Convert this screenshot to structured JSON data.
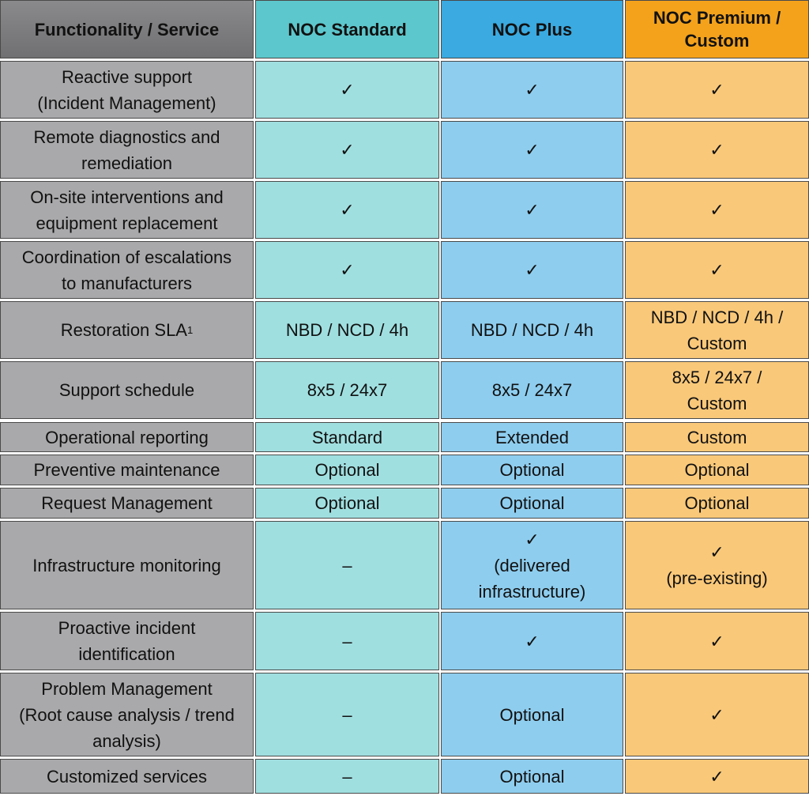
{
  "table": {
    "header": [
      "Functionality / Service",
      "NOC Standard",
      "NOC Plus",
      "NOC Premium /\nCustom"
    ],
    "superscript": "1",
    "rows": [
      [
        "Reactive support\n(Incident Management)",
        "✓",
        "✓",
        "✓"
      ],
      [
        "Remote diagnostics and\nremediation",
        "✓",
        "✓",
        "✓"
      ],
      [
        "On-site interventions and\nequipment replacement",
        "✓",
        "✓",
        "✓"
      ],
      [
        "Coordination of escalations\nto manufacturers",
        "✓",
        "✓",
        "✓"
      ],
      [
        "Restoration SLA",
        "NBD / NCD / 4h",
        "NBD / NCD / 4h",
        "NBD / NCD / 4h /\nCustom"
      ],
      [
        "Support schedule",
        "8x5 / 24x7",
        "8x5 / 24x7",
        "8x5 / 24x7 /\nCustom"
      ],
      [
        "Operational reporting",
        "Standard",
        "Extended",
        "Custom"
      ],
      [
        "Preventive maintenance",
        "Optional",
        "Optional",
        "Optional"
      ],
      [
        "Request Management",
        "Optional",
        "Optional",
        "Optional"
      ],
      [
        "Infrastructure monitoring",
        "–",
        "✓\n(delivered\ninfrastructure)",
        "✓\n(pre-existing)"
      ],
      [
        "Proactive incident\nidentification",
        "–",
        "✓",
        "✓"
      ],
      [
        "Problem Management\n(Root cause analysis / trend\nanalysis)",
        "–",
        "Optional",
        "✓"
      ],
      [
        "Customized services",
        "–",
        "Optional",
        "✓"
      ]
    ]
  }
}
